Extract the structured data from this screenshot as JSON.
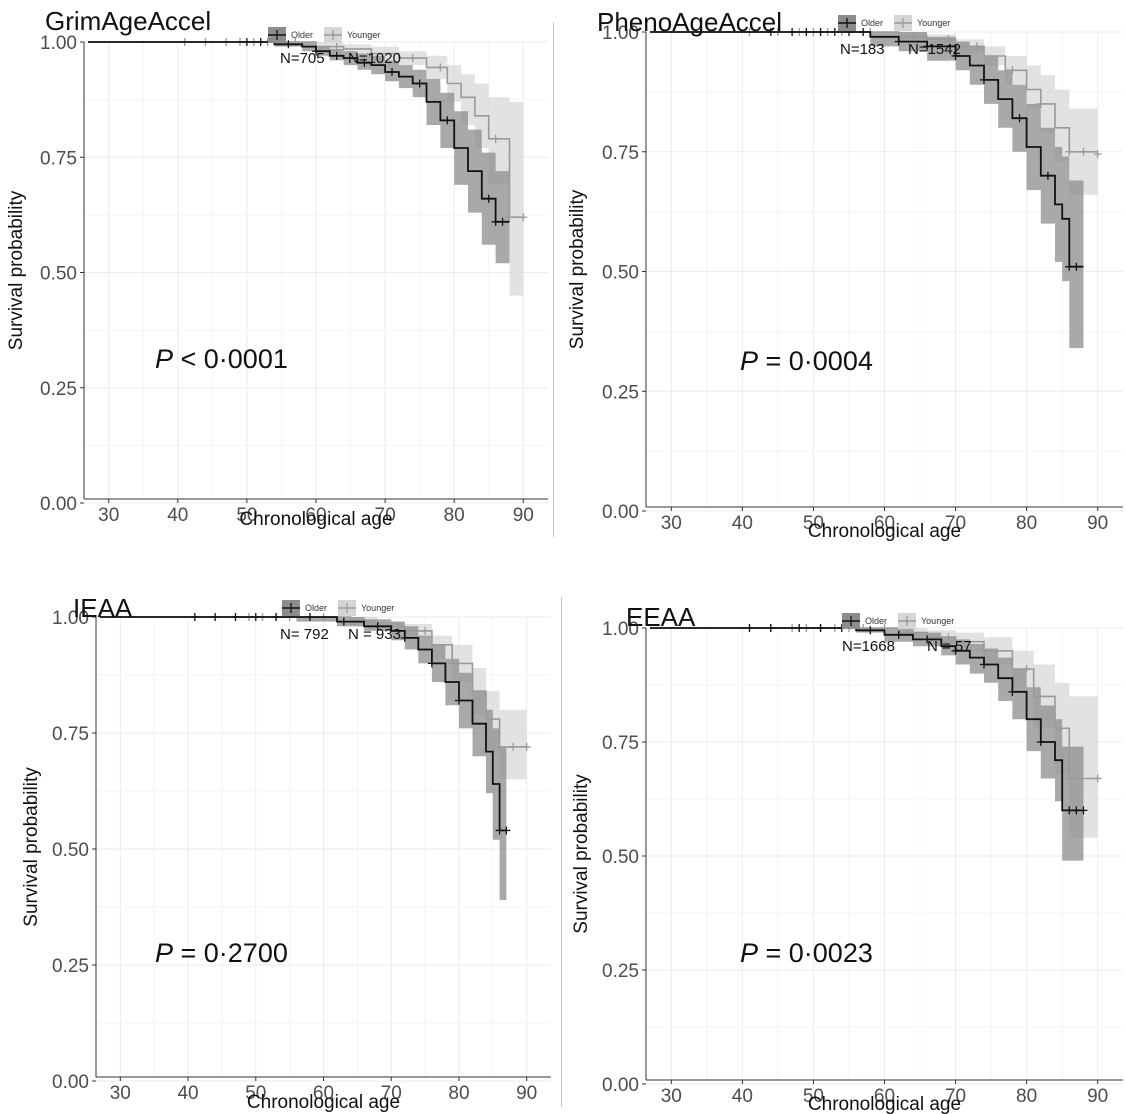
{
  "chart_data": [
    {
      "type": "line",
      "title": "GrimAgeAccel",
      "xlabel": "Chronological age",
      "ylabel": "Survival probability",
      "xlim": [
        27,
        93
      ],
      "ylim": [
        0,
        1
      ],
      "xticks": [
        "30",
        "40",
        "50",
        "60",
        "70",
        "80",
        "90"
      ],
      "yticks": [
        "0.00",
        "0.25",
        "0.50",
        "0.75",
        "1.00"
      ],
      "grid": true,
      "legend": "top",
      "p_value": {
        "symbol": "P",
        "text": " < 0·0001"
      },
      "n_labels": [
        "N=705",
        "N=1020"
      ],
      "series": [
        {
          "name": "Older",
          "color": "#111111",
          "band_color": "#8c8c8c",
          "x": [
            27,
            50,
            54,
            58,
            60,
            62,
            64,
            66,
            68,
            70,
            72,
            74,
            76,
            78,
            80,
            82,
            84,
            86,
            88
          ],
          "y": [
            1.0,
            1.0,
            0.995,
            0.99,
            0.98,
            0.97,
            0.965,
            0.955,
            0.95,
            0.935,
            0.925,
            0.91,
            0.87,
            0.83,
            0.77,
            0.72,
            0.66,
            0.61,
            0.61
          ],
          "lower": [
            1.0,
            1.0,
            0.99,
            0.98,
            0.97,
            0.96,
            0.95,
            0.94,
            0.93,
            0.915,
            0.9,
            0.88,
            0.82,
            0.77,
            0.69,
            0.63,
            0.56,
            0.52,
            0.52
          ],
          "upper": [
            1.0,
            1.0,
            1.0,
            1.0,
            0.99,
            0.985,
            0.98,
            0.975,
            0.97,
            0.96,
            0.95,
            0.94,
            0.92,
            0.89,
            0.85,
            0.81,
            0.76,
            0.72,
            0.72
          ],
          "censor_x": [
            50,
            52,
            56,
            60,
            63,
            67,
            71,
            75,
            79,
            85,
            86,
            87
          ]
        },
        {
          "name": "Younger",
          "color": "#9a9a9a",
          "band_color": "#d6d6d6",
          "x": [
            27,
            54,
            60,
            64,
            68,
            72,
            76,
            79,
            81,
            83,
            85,
            88,
            90
          ],
          "y": [
            1.0,
            1.0,
            0.99,
            0.985,
            0.975,
            0.965,
            0.945,
            0.91,
            0.88,
            0.84,
            0.79,
            0.62,
            0.62
          ],
          "lower": [
            1.0,
            1.0,
            0.98,
            0.975,
            0.96,
            0.95,
            0.92,
            0.87,
            0.82,
            0.77,
            0.69,
            0.45,
            0.45
          ],
          "upper": [
            1.0,
            1.0,
            1.0,
            0.995,
            0.99,
            0.98,
            0.97,
            0.95,
            0.93,
            0.91,
            0.88,
            0.87,
            0.87
          ],
          "censor_x": [
            41,
            44,
            47,
            49,
            51,
            53,
            55,
            57,
            63,
            68,
            74,
            78,
            86,
            88,
            90
          ]
        }
      ]
    },
    {
      "type": "line",
      "title": "PhenoAgeAccel",
      "xlabel": "Chronological age",
      "ylabel": "Survival probability",
      "xlim": [
        27,
        93
      ],
      "ylim": [
        0,
        1
      ],
      "xticks": [
        "30",
        "40",
        "50",
        "60",
        "70",
        "80",
        "90"
      ],
      "yticks": [
        "0.00",
        "0.25",
        "0.50",
        "0.75",
        "1.00"
      ],
      "grid": true,
      "legend": "top",
      "p_value": {
        "symbol": "P",
        "text": " = 0·0004"
      },
      "n_labels": [
        "N=183",
        "N=1542"
      ],
      "series": [
        {
          "name": "Older",
          "color": "#111111",
          "band_color": "#8c8c8c",
          "x": [
            27,
            58,
            62,
            66,
            70,
            72,
            74,
            76,
            78,
            80,
            82,
            84,
            85,
            86,
            88
          ],
          "y": [
            1.0,
            0.99,
            0.98,
            0.97,
            0.95,
            0.93,
            0.9,
            0.86,
            0.82,
            0.76,
            0.7,
            0.64,
            0.61,
            0.51,
            0.51
          ],
          "lower": [
            1.0,
            0.97,
            0.96,
            0.94,
            0.92,
            0.89,
            0.85,
            0.8,
            0.75,
            0.67,
            0.6,
            0.52,
            0.48,
            0.34,
            0.34
          ],
          "upper": [
            1.0,
            1.0,
            1.0,
            0.99,
            0.98,
            0.97,
            0.95,
            0.92,
            0.89,
            0.85,
            0.8,
            0.76,
            0.74,
            0.69,
            0.69
          ],
          "censor_x": [
            44,
            47,
            49,
            51,
            53,
            55,
            57,
            62,
            66,
            70,
            74,
            79,
            83,
            86,
            87
          ]
        },
        {
          "name": "Younger",
          "color": "#9a9a9a",
          "band_color": "#d6d6d6",
          "x": [
            27,
            56,
            62,
            66,
            70,
            74,
            77,
            80,
            82,
            84,
            86,
            90
          ],
          "y": [
            1.0,
            1.0,
            0.99,
            0.985,
            0.97,
            0.95,
            0.92,
            0.88,
            0.85,
            0.8,
            0.75,
            0.745
          ],
          "lower": [
            1.0,
            1.0,
            0.98,
            0.97,
            0.955,
            0.93,
            0.89,
            0.84,
            0.79,
            0.73,
            0.66,
            0.66
          ],
          "upper": [
            1.0,
            1.0,
            1.0,
            0.995,
            0.985,
            0.97,
            0.95,
            0.93,
            0.91,
            0.88,
            0.84,
            0.84
          ],
          "censor_x": [
            41,
            45,
            48,
            50,
            52,
            54,
            58,
            64,
            69,
            73,
            78,
            82,
            86,
            88,
            90
          ]
        }
      ]
    },
    {
      "type": "line",
      "title": "IEAA",
      "xlabel": "Chronological age",
      "ylabel": "Survival probability",
      "xlim": [
        27,
        93
      ],
      "ylim": [
        0,
        1
      ],
      "xticks": [
        "30",
        "40",
        "50",
        "60",
        "70",
        "80",
        "90"
      ],
      "yticks": [
        "0.00",
        "0.25",
        "0.50",
        "0.75",
        "1.00"
      ],
      "grid": true,
      "legend": "top",
      "p_value": {
        "symbol": "P",
        "text": " = 0·2700"
      },
      "n_labels": [
        "N= 792",
        "N = 933"
      ],
      "series": [
        {
          "name": "Older",
          "color": "#111111",
          "band_color": "#8c8c8c",
          "x": [
            27,
            56,
            62,
            66,
            70,
            72,
            74,
            76,
            78,
            80,
            82,
            84,
            85,
            86,
            87
          ],
          "y": [
            1.0,
            1.0,
            0.99,
            0.98,
            0.97,
            0.955,
            0.93,
            0.9,
            0.86,
            0.82,
            0.77,
            0.71,
            0.64,
            0.54,
            0.54
          ],
          "lower": [
            1.0,
            0.99,
            0.98,
            0.97,
            0.95,
            0.93,
            0.9,
            0.86,
            0.81,
            0.76,
            0.7,
            0.62,
            0.52,
            0.39,
            0.39
          ],
          "upper": [
            1.0,
            1.0,
            1.0,
            0.995,
            0.99,
            0.98,
            0.96,
            0.94,
            0.91,
            0.88,
            0.84,
            0.8,
            0.76,
            0.72,
            0.72
          ],
          "censor_x": [
            41,
            44,
            47,
            50,
            53,
            58,
            63,
            68,
            72,
            76,
            80,
            86,
            87
          ]
        },
        {
          "name": "Younger",
          "color": "#9a9a9a",
          "band_color": "#d6d6d6",
          "x": [
            27,
            58,
            64,
            68,
            72,
            76,
            79,
            82,
            84,
            86,
            90
          ],
          "y": [
            1.0,
            1.0,
            0.99,
            0.98,
            0.97,
            0.94,
            0.9,
            0.84,
            0.78,
            0.72,
            0.72
          ],
          "lower": [
            1.0,
            1.0,
            0.98,
            0.97,
            0.955,
            0.91,
            0.86,
            0.79,
            0.71,
            0.65,
            0.65
          ],
          "upper": [
            1.0,
            1.0,
            1.0,
            0.99,
            0.985,
            0.96,
            0.94,
            0.89,
            0.84,
            0.8,
            0.8
          ],
          "censor_x": [
            49,
            51,
            53,
            55,
            60,
            66,
            71,
            75,
            79,
            82,
            86,
            88,
            90
          ]
        }
      ]
    },
    {
      "type": "line",
      "title": "EEAA",
      "xlabel": "Chronological age",
      "ylabel": "Survival probability",
      "xlim": [
        27,
        93
      ],
      "ylim": [
        0,
        1
      ],
      "xticks": [
        "30",
        "40",
        "50",
        "60",
        "70",
        "80",
        "90"
      ],
      "yticks": [
        "0.00",
        "0.25",
        "0.50",
        "0.75",
        "1.00"
      ],
      "grid": true,
      "legend": "top",
      "p_value": {
        "symbol": "P",
        "text": " = 0·0023"
      },
      "n_labels": [
        "N=1668",
        "N = 57"
      ],
      "series": [
        {
          "name": "Older",
          "color": "#111111",
          "band_color": "#8c8c8c",
          "x": [
            27,
            56,
            60,
            64,
            68,
            70,
            72,
            74,
            76,
            78,
            80,
            82,
            84,
            85,
            88
          ],
          "y": [
            1.0,
            0.995,
            0.985,
            0.975,
            0.96,
            0.95,
            0.935,
            0.92,
            0.89,
            0.86,
            0.8,
            0.75,
            0.71,
            0.6,
            0.6
          ],
          "lower": [
            1.0,
            0.99,
            0.97,
            0.96,
            0.94,
            0.92,
            0.9,
            0.88,
            0.84,
            0.8,
            0.73,
            0.67,
            0.62,
            0.49,
            0.49
          ],
          "upper": [
            1.0,
            1.0,
            1.0,
            0.99,
            0.98,
            0.975,
            0.965,
            0.955,
            0.935,
            0.91,
            0.87,
            0.83,
            0.8,
            0.74,
            0.74
          ],
          "censor_x": [
            41,
            44,
            48,
            51,
            54,
            58,
            62,
            66,
            70,
            74,
            78,
            82,
            86,
            87,
            88
          ]
        },
        {
          "name": "Younger",
          "color": "#9a9a9a",
          "band_color": "#d6d6d6",
          "x": [
            27,
            62,
            66,
            70,
            74,
            78,
            81,
            84,
            86,
            90
          ],
          "y": [
            1.0,
            0.99,
            0.98,
            0.97,
            0.95,
            0.91,
            0.85,
            0.78,
            0.67,
            0.67
          ],
          "lower": [
            1.0,
            0.98,
            0.965,
            0.95,
            0.92,
            0.87,
            0.78,
            0.68,
            0.54,
            0.54
          ],
          "upper": [
            1.0,
            1.0,
            0.995,
            0.99,
            0.98,
            0.95,
            0.92,
            0.88,
            0.85,
            0.85
          ],
          "censor_x": [
            44,
            47,
            49,
            51,
            53,
            55,
            57,
            60,
            64,
            69,
            74,
            80,
            86,
            90
          ]
        }
      ]
    }
  ]
}
